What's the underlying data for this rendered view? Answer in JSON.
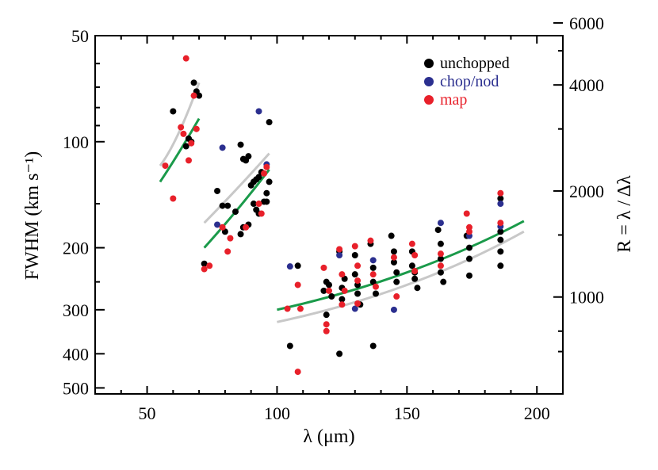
{
  "chart_data": {
    "type": "scatter",
    "xlabel": "λ (μm)",
    "ylabel_left": "FWHM (km s⁻¹)",
    "ylabel_right": "R = λ / Δλ",
    "xlim": [
      30,
      210
    ],
    "ylim": [
      50,
      520
    ],
    "y_scale": "log-inverted",
    "x_ticks": [
      50,
      100,
      150,
      200
    ],
    "y_ticks_left": [
      50,
      100,
      200,
      300,
      400,
      500
    ],
    "y_ticks_right": [
      6000,
      4000,
      2000,
      1000
    ],
    "legend_position": "top-right",
    "series": [
      {
        "name": "unchopped",
        "color": "#000000",
        "points": [
          [
            60,
            82
          ],
          [
            65,
            103
          ],
          [
            66,
            98
          ],
          [
            67,
            100
          ],
          [
            68,
            68
          ],
          [
            69,
            72
          ],
          [
            70,
            74
          ],
          [
            72,
            222
          ],
          [
            77,
            138
          ],
          [
            79,
            152
          ],
          [
            80,
            180
          ],
          [
            81,
            152
          ],
          [
            84,
            158
          ],
          [
            86,
            102
          ],
          [
            87,
            112
          ],
          [
            88,
            113
          ],
          [
            89,
            110
          ],
          [
            90,
            133
          ],
          [
            91,
            130
          ],
          [
            92,
            128
          ],
          [
            93,
            126
          ],
          [
            94,
            122
          ],
          [
            95,
            148
          ],
          [
            96,
            140
          ],
          [
            97,
            88
          ],
          [
            86,
            183
          ],
          [
            87,
            175
          ],
          [
            89,
            172
          ],
          [
            91,
            150
          ],
          [
            92,
            156
          ],
          [
            93,
            160
          ],
          [
            96,
            148
          ],
          [
            97,
            130
          ],
          [
            105,
            380
          ],
          [
            108,
            225
          ],
          [
            118,
            265
          ],
          [
            119,
            250
          ],
          [
            119,
            310
          ],
          [
            120,
            255
          ],
          [
            121,
            275
          ],
          [
            124,
            205
          ],
          [
            124,
            400
          ],
          [
            125,
            260
          ],
          [
            125,
            280
          ],
          [
            126,
            245
          ],
          [
            130,
            210
          ],
          [
            130,
            238
          ],
          [
            131,
            255
          ],
          [
            131,
            270
          ],
          [
            132,
            290
          ],
          [
            136,
            195
          ],
          [
            137,
            228
          ],
          [
            137,
            250
          ],
          [
            138,
            270
          ],
          [
            137,
            380
          ],
          [
            144,
            185
          ],
          [
            145,
            205
          ],
          [
            145,
            220
          ],
          [
            146,
            235
          ],
          [
            146,
            250
          ],
          [
            152,
            205
          ],
          [
            152,
            225
          ],
          [
            153,
            235
          ],
          [
            153,
            245
          ],
          [
            154,
            260
          ],
          [
            162,
            178
          ],
          [
            163,
            195
          ],
          [
            163,
            215
          ],
          [
            163,
            235
          ],
          [
            164,
            250
          ],
          [
            173,
            185
          ],
          [
            174,
            200
          ],
          [
            174,
            215
          ],
          [
            174,
            240
          ],
          [
            186,
            145
          ],
          [
            186,
            180
          ],
          [
            186,
            190
          ],
          [
            186,
            205
          ],
          [
            186,
            225
          ]
        ]
      },
      {
        "name": "chop/nod",
        "color": "#2b2f8f",
        "points": [
          [
            79,
            104
          ],
          [
            77,
            172
          ],
          [
            93,
            82
          ],
          [
            96,
            116
          ],
          [
            105,
            226
          ],
          [
            124,
            210
          ],
          [
            130,
            298
          ],
          [
            137,
            217
          ],
          [
            145,
            300
          ],
          [
            163,
            170
          ],
          [
            174,
            185
          ],
          [
            186,
            150
          ],
          [
            186,
            174
          ]
        ]
      },
      {
        "name": "map",
        "color": "#e8202a",
        "points": [
          [
            57,
            117
          ],
          [
            60,
            145
          ],
          [
            63,
            91
          ],
          [
            64,
            95
          ],
          [
            65,
            58
          ],
          [
            66,
            113
          ],
          [
            67,
            101
          ],
          [
            68,
            74
          ],
          [
            69,
            92
          ],
          [
            72,
            230
          ],
          [
            74,
            225
          ],
          [
            79,
            175
          ],
          [
            81,
            205
          ],
          [
            82,
            188
          ],
          [
            88,
            175
          ],
          [
            93,
            150
          ],
          [
            94,
            160
          ],
          [
            95,
            123
          ],
          [
            96,
            118
          ],
          [
            104,
            298
          ],
          [
            108,
            255
          ],
          [
            108,
            450
          ],
          [
            109,
            298
          ],
          [
            118,
            228
          ],
          [
            119,
            330
          ],
          [
            119,
            345
          ],
          [
            120,
            265
          ],
          [
            124,
            202
          ],
          [
            125,
            238
          ],
          [
            125,
            290
          ],
          [
            126,
            265
          ],
          [
            130,
            198
          ],
          [
            131,
            225
          ],
          [
            131,
            248
          ],
          [
            131,
            288
          ],
          [
            136,
            191
          ],
          [
            137,
            238
          ],
          [
            138,
            258
          ],
          [
            145,
            213
          ],
          [
            146,
            275
          ],
          [
            152,
            195
          ],
          [
            153,
            210
          ],
          [
            153,
            233
          ],
          [
            163,
            208
          ],
          [
            163,
            225
          ],
          [
            173,
            160
          ],
          [
            174,
            175
          ],
          [
            174,
            180
          ],
          [
            186,
            140
          ],
          [
            186,
            170
          ]
        ]
      }
    ],
    "model_curves": [
      {
        "color": "#c8c8c8",
        "segments": [
          [
            [
              55,
              117
            ],
            [
              62,
              95
            ],
            [
              70,
              68
            ]
          ],
          [
            [
              72,
              170
            ],
            [
              85,
              135
            ],
            [
              97,
              108
            ]
          ],
          [
            [
              100,
              325
            ],
            [
              150,
              255
            ],
            [
              195,
              180
            ]
          ]
        ]
      },
      {
        "color": "#1a9a4a",
        "segments": [
          [
            [
              55,
              130
            ],
            [
              62,
              108
            ],
            [
              70,
              86
            ]
          ],
          [
            [
              72,
              200
            ],
            [
              85,
              155
            ],
            [
              97,
              120
            ]
          ],
          [
            [
              100,
              300
            ],
            [
              150,
              235
            ],
            [
              195,
              168
            ]
          ]
        ]
      }
    ]
  }
}
